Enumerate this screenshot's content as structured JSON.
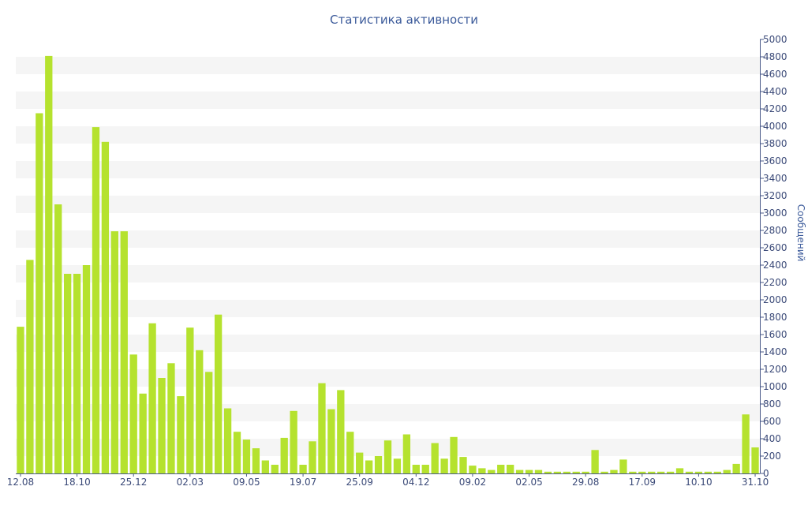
{
  "chart_data": {
    "type": "bar",
    "title": "Статистика активности",
    "ylabel": "Сообщений",
    "ylim": [
      0,
      5000
    ],
    "ytick_step": 200,
    "y_axis_side": "right",
    "grid": "horizontal bands",
    "bar_color": "#b5e22e",
    "band_color": "#f5f5f5",
    "axis_color": "#4a5a8a",
    "x_tick_labels": [
      {
        "index": 0,
        "label": "12.08"
      },
      {
        "index": 6,
        "label": "18.10"
      },
      {
        "index": 12,
        "label": "25.12"
      },
      {
        "index": 18,
        "label": "02.03"
      },
      {
        "index": 24,
        "label": "09.05"
      },
      {
        "index": 30,
        "label": "19.07"
      },
      {
        "index": 36,
        "label": "25.09"
      },
      {
        "index": 42,
        "label": "04.12"
      },
      {
        "index": 48,
        "label": "09.02"
      },
      {
        "index": 54,
        "label": "02.05"
      },
      {
        "index": 60,
        "label": "29.08"
      },
      {
        "index": 66,
        "label": "17.09"
      },
      {
        "index": 72,
        "label": "10.10"
      },
      {
        "index": 78,
        "label": "31.10"
      }
    ],
    "values": [
      1690,
      2460,
      4150,
      4810,
      3100,
      2300,
      2300,
      2400,
      3990,
      3820,
      2790,
      2790,
      1370,
      920,
      1730,
      1100,
      1270,
      890,
      1680,
      1420,
      1170,
      1830,
      750,
      480,
      390,
      290,
      150,
      100,
      410,
      720,
      100,
      370,
      1040,
      740,
      960,
      480,
      240,
      150,
      200,
      380,
      170,
      450,
      100,
      100,
      350,
      170,
      420,
      190,
      90,
      60,
      40,
      100,
      100,
      40,
      40,
      40,
      20,
      20,
      20,
      20,
      20,
      270,
      20,
      40,
      160,
      20,
      20,
      20,
      20,
      20,
      60,
      20,
      20,
      20,
      20,
      40,
      110,
      680,
      300
    ]
  }
}
